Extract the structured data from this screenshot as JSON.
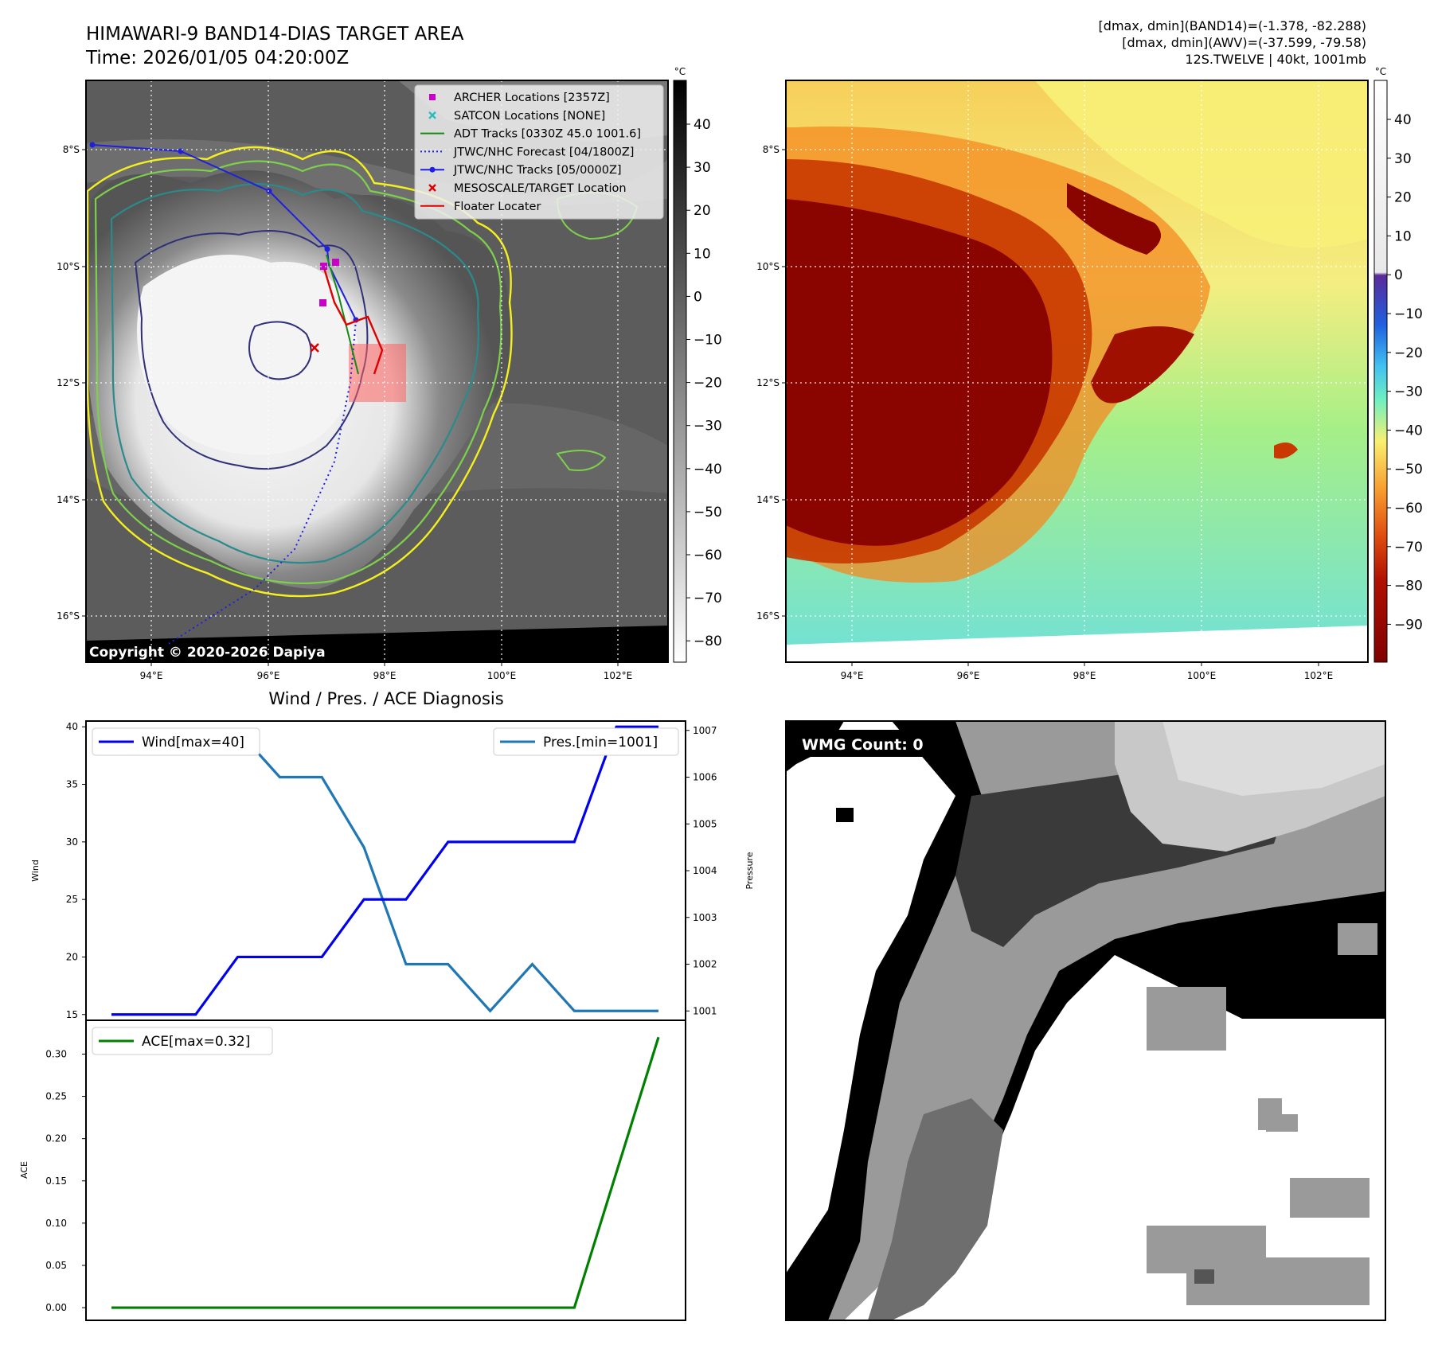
{
  "header": {
    "title_line1": "HIMAWARI-9 BAND14-DIAS TARGET AREA",
    "title_line2": "Time: 2026/01/05 04:20:00Z",
    "stats_line1": "[dmax, dmin](BAND14)=(-1.378, -82.288)",
    "stats_line2": "[dmax, dmin](AWV)=(-37.599, -79.58)",
    "stats_line3": "12S.TWELVE | 40kt, 1001mb"
  },
  "ir_map": {
    "copyright": "Copyright © 2020-2026 Dapiya",
    "lon_ticks": [
      "94°E",
      "96°E",
      "98°E",
      "100°E",
      "102°E"
    ],
    "lat_ticks": [
      "8°S",
      "10°S",
      "12°S",
      "14°S",
      "16°S"
    ],
    "colorbar_unit": "°C",
    "colorbar_ticks": [
      "40",
      "30",
      "20",
      "10",
      "0",
      "−10",
      "−20",
      "−30",
      "−40",
      "−50",
      "−60",
      "−70",
      "−80"
    ],
    "legend": [
      {
        "label": "ARCHER Locations [2357Z]",
        "marker": "square",
        "color": "#c800c8"
      },
      {
        "label": "SATCON Locations [NONE]",
        "marker": "x",
        "color": "#1fbfbf"
      },
      {
        "label": "ADT Tracks [0330Z 45.0 1001.6]",
        "marker": "line",
        "color": "#138a13"
      },
      {
        "label": "JTWC/NHC Forecast [04/1800Z]",
        "marker": "dotted",
        "color": "#1f1fdf"
      },
      {
        "label": "JTWC/NHC Tracks [05/0000Z]",
        "marker": "line-dot",
        "color": "#1f1fdf"
      },
      {
        "label": "MESOSCALE/TARGET Location",
        "marker": "x",
        "color": "#e00000"
      },
      {
        "label": "Floater Locater",
        "marker": "line",
        "color": "#e00000"
      }
    ]
  },
  "awv_map": {
    "lon_ticks": [
      "94°E",
      "96°E",
      "98°E",
      "100°E",
      "102°E"
    ],
    "lat_ticks": [
      "8°S",
      "10°S",
      "12°S",
      "14°S",
      "16°S"
    ],
    "colorbar_unit": "°C",
    "colorbar_ticks": [
      "40",
      "30",
      "20",
      "10",
      "0",
      "−10",
      "−20",
      "−30",
      "−40",
      "−50",
      "−60",
      "−70",
      "−80",
      "−90"
    ]
  },
  "wmg_panel": {
    "label": "WMG Count: 0"
  },
  "colors": {
    "wind": "#0000ee",
    "pressure": "#1f77b4",
    "ace": "#008000",
    "contour_yellow": "#f4f01e",
    "contour_green": "#7ed04b",
    "contour_teal": "#2a8a8c",
    "contour_navy": "#2f2f7a"
  },
  "chart_data": [
    {
      "type": "line",
      "title": "Wind / Pres. / ACE Diagnosis",
      "x": [
        0,
        1,
        2,
        3,
        4,
        5,
        6,
        7,
        8,
        9,
        10,
        11,
        12,
        13
      ],
      "series": [
        {
          "name": "Wind[max=40]",
          "axis": "left",
          "values": [
            15,
            15,
            15,
            20,
            20,
            20,
            25,
            25,
            30,
            30,
            30,
            30,
            40,
            40
          ]
        },
        {
          "name": "Pres.[min=1001]",
          "axis": "right",
          "values": [
            1007,
            1007,
            1007,
            1007,
            1006,
            1006,
            1004.5,
            1002,
            1002,
            1001,
            1002,
            1001,
            1001,
            1001
          ]
        }
      ],
      "ylabel": "Wind",
      "y2label": "Pressure",
      "ylim": [
        14.5,
        40.5
      ],
      "y2lim": [
        1000.8,
        1007.2
      ],
      "yticks": [
        "40",
        "35",
        "30",
        "25",
        "20",
        "15"
      ],
      "y2ticks": [
        "1007",
        "1006",
        "1005",
        "1004",
        "1003",
        "1002",
        "1001"
      ],
      "legend": "top-left / top-right"
    },
    {
      "type": "line",
      "x": [
        0,
        1,
        2,
        3,
        4,
        5,
        6,
        7,
        8,
        9,
        10,
        11,
        12,
        13
      ],
      "series": [
        {
          "name": "ACE[max=0.32]",
          "values": [
            0,
            0,
            0,
            0,
            0,
            0,
            0,
            0,
            0,
            0,
            0,
            0,
            0.16,
            0.32
          ]
        }
      ],
      "ylabel": "ACE",
      "ylim": [
        -0.015,
        0.34
      ],
      "yticks": [
        "0.30",
        "0.25",
        "0.20",
        "0.15",
        "0.10",
        "0.05",
        "0.00"
      ],
      "legend": "top-left"
    }
  ]
}
